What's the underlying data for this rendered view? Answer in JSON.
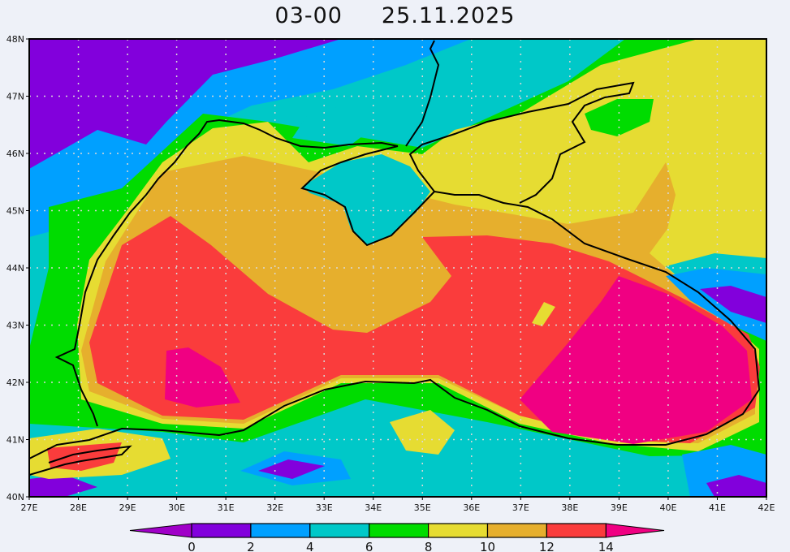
{
  "title": "03-00     25.11.2025",
  "map": {
    "lon_range": [
      27,
      42
    ],
    "lat_range": [
      40,
      48
    ],
    "lon_ticks": [
      "27E",
      "28E",
      "29E",
      "30E",
      "31E",
      "32E",
      "33E",
      "34E",
      "35E",
      "36E",
      "37E",
      "38E",
      "39E",
      "40E",
      "41E",
      "42E"
    ],
    "lat_ticks": [
      "40N",
      "41N",
      "42N",
      "43N",
      "44N",
      "45N",
      "46N",
      "47N",
      "48N"
    ],
    "grid": "dotted"
  },
  "colorbar": {
    "levels": [
      "0",
      "2",
      "4",
      "6",
      "8",
      "10",
      "12",
      "14"
    ],
    "under_color": "#a000c8",
    "colors": [
      "#8200dc",
      "#00a0ff",
      "#00c8c8",
      "#00dc00",
      "#e6dc32",
      "#e6af2d",
      "#fa3c3c"
    ],
    "over_color": "#f00082"
  }
}
